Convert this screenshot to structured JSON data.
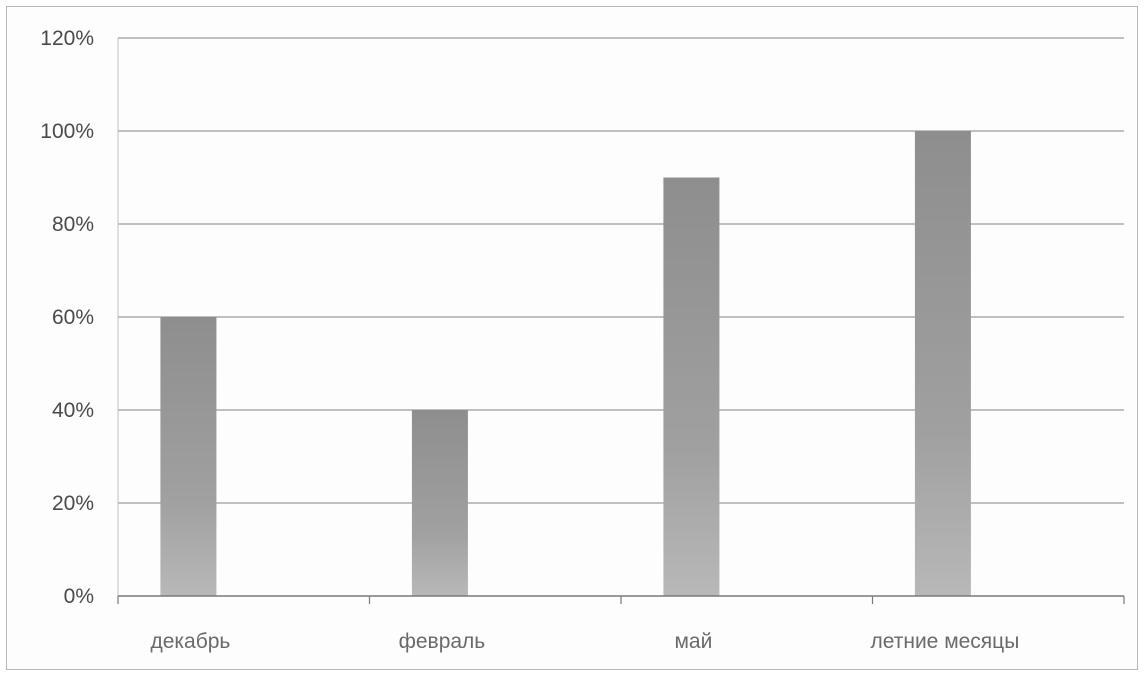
{
  "chart_data": {
    "type": "bar",
    "categories": [
      "декабрь",
      "февраль",
      "май",
      "летние месяцы"
    ],
    "values": [
      60,
      40,
      90,
      100
    ],
    "ylim": [
      0,
      120
    ],
    "yticks": [
      "0%",
      "20%",
      "40%",
      "60%",
      "80%",
      "100%",
      "120%"
    ],
    "grid": true,
    "legend": "none",
    "bar_color": "#9a9a9a"
  }
}
